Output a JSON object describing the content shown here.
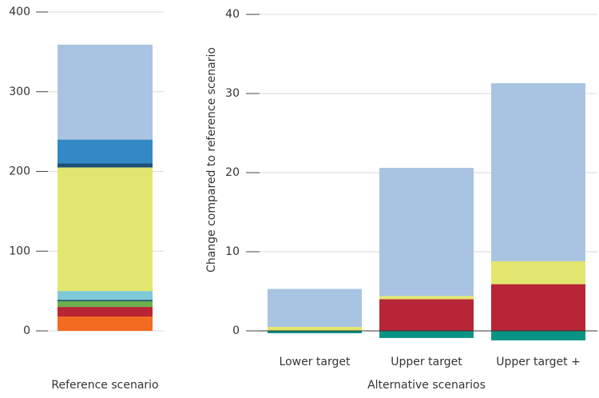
{
  "chart_data": [
    {
      "type": "stacked_bar",
      "categories": [
        "Reference scenario"
      ],
      "ylim": [
        0,
        400
      ],
      "yticks": [
        0,
        100,
        200,
        300,
        400
      ],
      "grid": true,
      "series": [
        {
          "color": "#f26b21",
          "values": [
            18
          ]
        },
        {
          "color": "#b82535",
          "values": [
            12
          ]
        },
        {
          "color": "#6ab04c",
          "values": [
            7
          ]
        },
        {
          "color": "#1f5f6e",
          "values": [
            2
          ]
        },
        {
          "color": "#7ec8d8",
          "values": [
            11
          ]
        },
        {
          "color": "#e3e66e",
          "values": [
            155
          ]
        },
        {
          "color": "#1b4f7a",
          "values": [
            5
          ]
        },
        {
          "color": "#3389c5",
          "values": [
            30
          ]
        },
        {
          "color": "#a8c4e2",
          "values": [
            119
          ]
        }
      ]
    },
    {
      "type": "stacked_bar",
      "categories": [
        "Lower target",
        "Upper target",
        "Upper target +"
      ],
      "x_label": "Alternative scenarios",
      "y_label": "Change compared to reference scenario",
      "ylim": [
        0,
        40
      ],
      "yticks": [
        0,
        10,
        20,
        30,
        40
      ],
      "grid": true,
      "series": [
        {
          "color": "#0a9484",
          "values": [
            -0.3,
            -0.9,
            -1.2
          ]
        },
        {
          "color": "#b82535",
          "values": [
            0,
            4.0,
            5.9
          ]
        },
        {
          "color": "#e3e66e",
          "values": [
            0.5,
            0.4,
            2.9
          ]
        },
        {
          "color": "#a8c4e2",
          "values": [
            4.8,
            16.2,
            22.5
          ]
        }
      ]
    }
  ]
}
